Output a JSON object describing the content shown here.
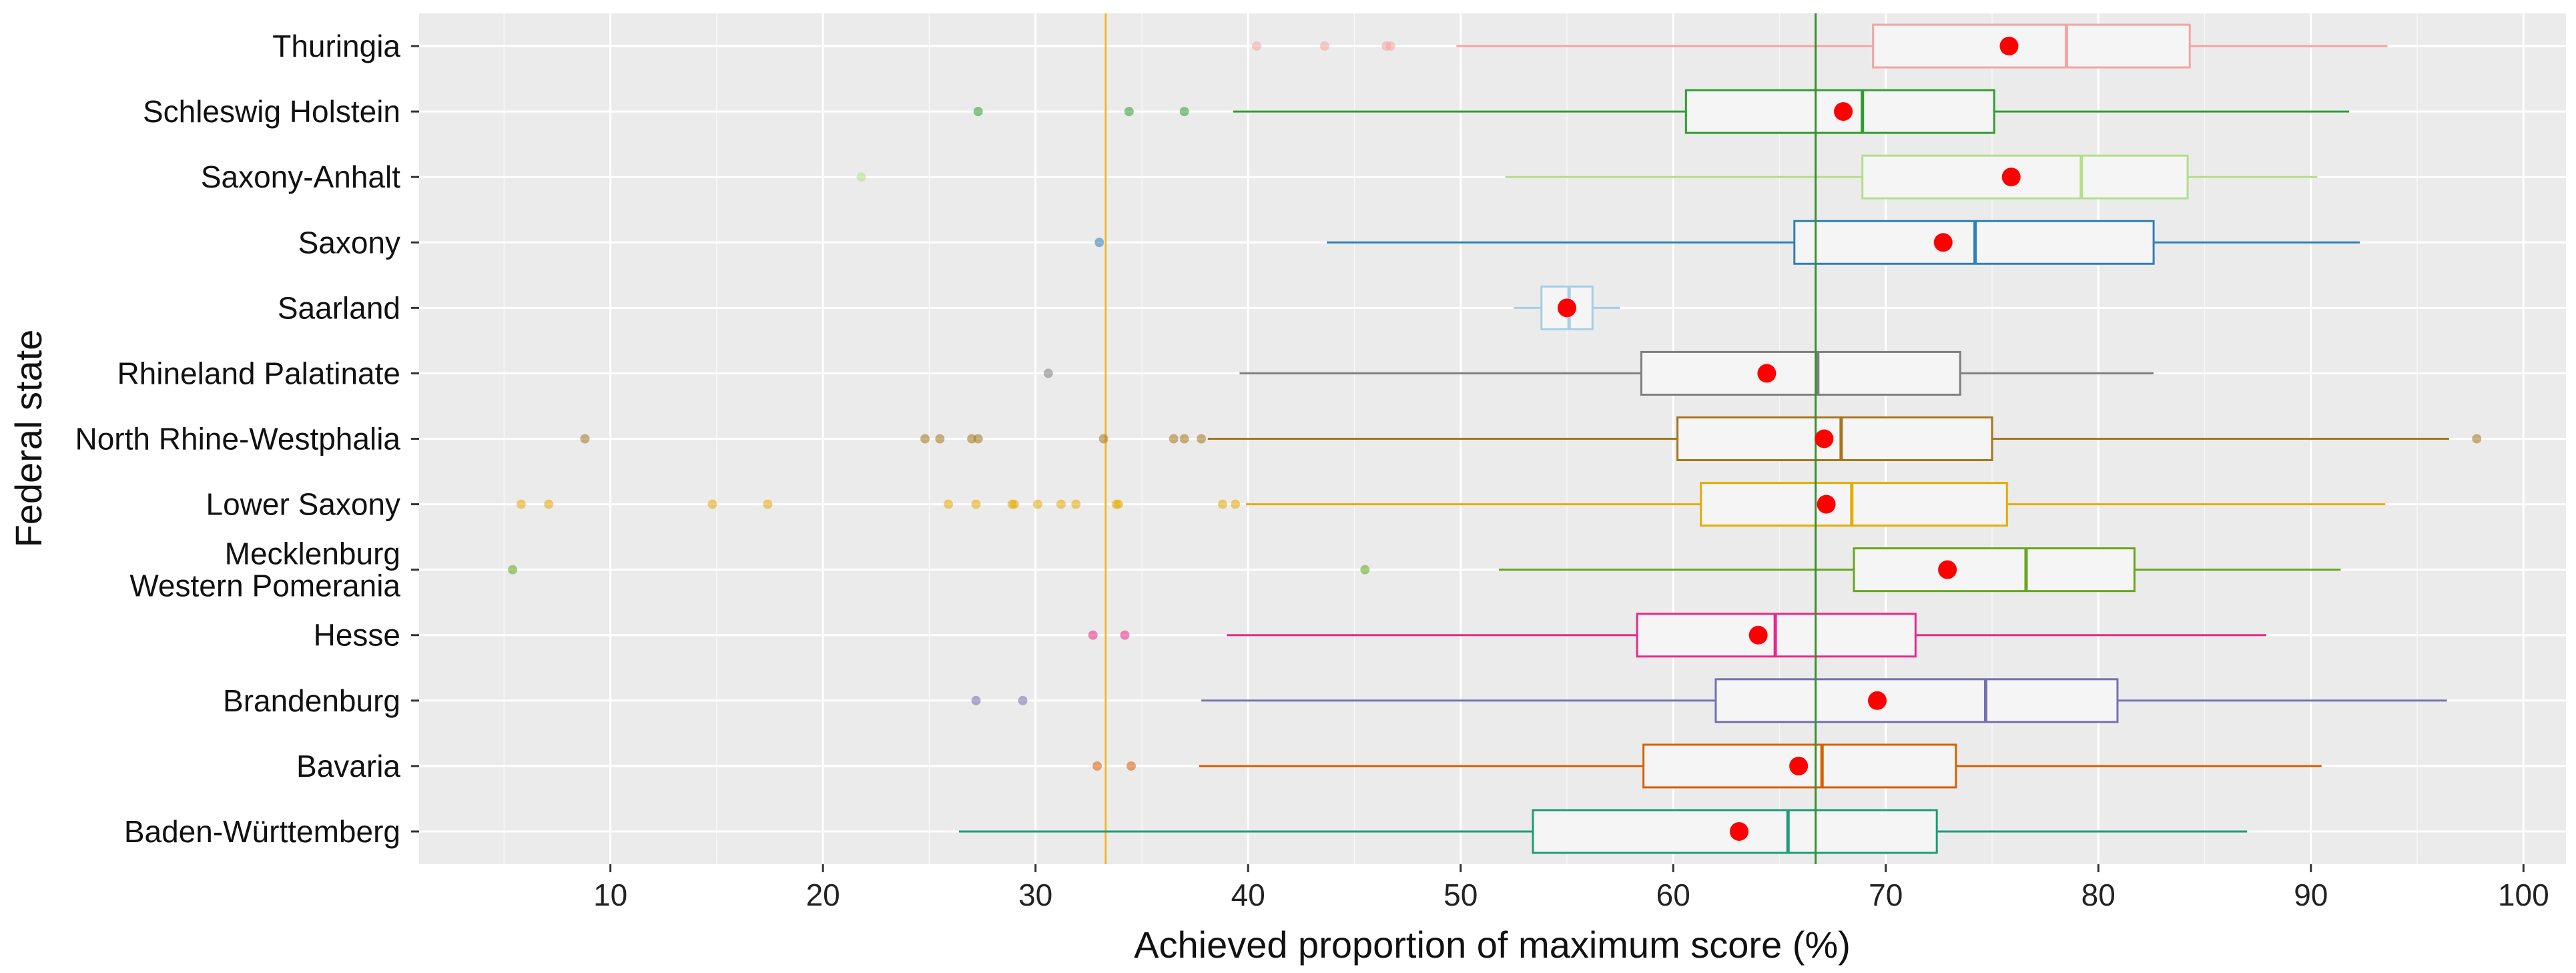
{
  "chart_data": {
    "type": "boxplot",
    "orientation": "horizontal",
    "xlabel": "Achieved proportion of maximum score (%)",
    "ylabel": "Federal state",
    "xlim": [
      1,
      102
    ],
    "xticks": [
      10,
      20,
      30,
      40,
      50,
      60,
      70,
      80,
      90,
      100
    ],
    "reference_lines": {
      "vertical_orange": 33.3,
      "vertical_green": 66.7
    },
    "colors": {
      "background": "#EBEBEB",
      "grid": "#FFFFFF",
      "mean_marker": "#FF0000",
      "box_fill": "#F5F5F5",
      "ref_orange": "#F2B92C",
      "ref_green": "#3A8F2F"
    },
    "series": [
      {
        "name": "Thuringia",
        "lines": [
          "Thuringia"
        ],
        "color": "#F7A3A3",
        "whisker_low": 49.8,
        "q1": 69.4,
        "median": 78.5,
        "q3": 84.3,
        "whisker_high": 93.6,
        "mean": 75.8,
        "outliers": [
          40.4,
          43.6,
          46.5,
          46.7
        ]
      },
      {
        "name": "Schleswig Holstein",
        "lines": [
          "Schleswig Holstein"
        ],
        "color": "#2E9E33",
        "whisker_low": 39.3,
        "q1": 60.6,
        "median": 68.9,
        "q3": 75.1,
        "whisker_high": 91.8,
        "mean": 68.0,
        "outliers": [
          27.3,
          34.4,
          37.0
        ]
      },
      {
        "name": "Saxony-Anhalt",
        "lines": [
          "Saxony-Anhalt"
        ],
        "color": "#B2DF8A",
        "whisker_low": 52.1,
        "q1": 68.9,
        "median": 79.2,
        "q3": 84.2,
        "whisker_high": 90.3,
        "mean": 75.9,
        "outliers": [
          21.8
        ]
      },
      {
        "name": "Saxony",
        "lines": [
          "Saxony"
        ],
        "color": "#2F7FB8",
        "whisker_low": 43.7,
        "q1": 65.7,
        "median": 74.2,
        "q3": 82.6,
        "whisker_high": 92.3,
        "mean": 72.7,
        "outliers": [
          33.0
        ]
      },
      {
        "name": "Saarland",
        "lines": [
          "Saarland"
        ],
        "color": "#A6CEE3",
        "whisker_low": 52.5,
        "q1": 53.8,
        "median": 55.1,
        "q3": 56.2,
        "whisker_high": 57.5,
        "mean": 55.0,
        "outliers": []
      },
      {
        "name": "Rhineland Palatinate",
        "lines": [
          "Rhineland Palatinate"
        ],
        "color": "#7F7F7F",
        "whisker_low": 39.6,
        "q1": 58.5,
        "median": 66.8,
        "q3": 73.5,
        "whisker_high": 82.6,
        "mean": 64.4,
        "outliers": [
          30.6
        ]
      },
      {
        "name": "North Rhine-Westphalia",
        "lines": [
          "North Rhine-Westphalia"
        ],
        "color": "#A6761D",
        "whisker_low": 38.1,
        "q1": 60.2,
        "median": 67.9,
        "q3": 75.0,
        "whisker_high": 96.5,
        "mean": 67.1,
        "outliers": [
          8.8,
          24.8,
          25.5,
          27.0,
          27.3,
          33.2,
          36.5,
          37.0,
          37.8,
          97.8
        ]
      },
      {
        "name": "Lower Saxony",
        "lines": [
          "Lower Saxony"
        ],
        "color": "#E6AB02",
        "whisker_low": 39.9,
        "q1": 61.3,
        "median": 68.4,
        "q3": 75.7,
        "whisker_high": 93.5,
        "mean": 67.2,
        "outliers": [
          5.8,
          7.1,
          14.8,
          17.4,
          25.9,
          27.2,
          28.9,
          29.0,
          30.1,
          31.2,
          31.9,
          33.8,
          33.9,
          38.8,
          39.4
        ]
      },
      {
        "name": "Mecklenburg Western Pomerania",
        "lines": [
          "Mecklenburg",
          "Western Pomerania"
        ],
        "color": "#66A61E",
        "whisker_low": 51.8,
        "q1": 68.5,
        "median": 76.6,
        "q3": 81.7,
        "whisker_high": 91.4,
        "mean": 72.9,
        "outliers": [
          5.4,
          45.5
        ]
      },
      {
        "name": "Hesse",
        "lines": [
          "Hesse"
        ],
        "color": "#E7298A",
        "whisker_low": 39.0,
        "q1": 58.3,
        "median": 64.8,
        "q3": 71.4,
        "whisker_high": 87.9,
        "mean": 64.0,
        "outliers": [
          32.7,
          34.2
        ]
      },
      {
        "name": "Brandenburg",
        "lines": [
          "Brandenburg"
        ],
        "color": "#7570B3",
        "whisker_low": 37.8,
        "q1": 62.0,
        "median": 74.7,
        "q3": 80.9,
        "whisker_high": 96.4,
        "mean": 69.6,
        "outliers": [
          27.2,
          29.4
        ]
      },
      {
        "name": "Bavaria",
        "lines": [
          "Bavaria"
        ],
        "color": "#D95F02",
        "whisker_low": 37.7,
        "q1": 58.6,
        "median": 67.0,
        "q3": 73.3,
        "whisker_high": 90.5,
        "mean": 65.9,
        "outliers": [
          32.9,
          34.5
        ]
      },
      {
        "name": "Baden-Württemberg",
        "lines": [
          "Baden-Württemberg"
        ],
        "color": "#1B9E77",
        "whisker_low": 26.4,
        "q1": 53.4,
        "median": 65.4,
        "q3": 72.4,
        "whisker_high": 87.0,
        "mean": 63.1,
        "outliers": []
      }
    ]
  }
}
